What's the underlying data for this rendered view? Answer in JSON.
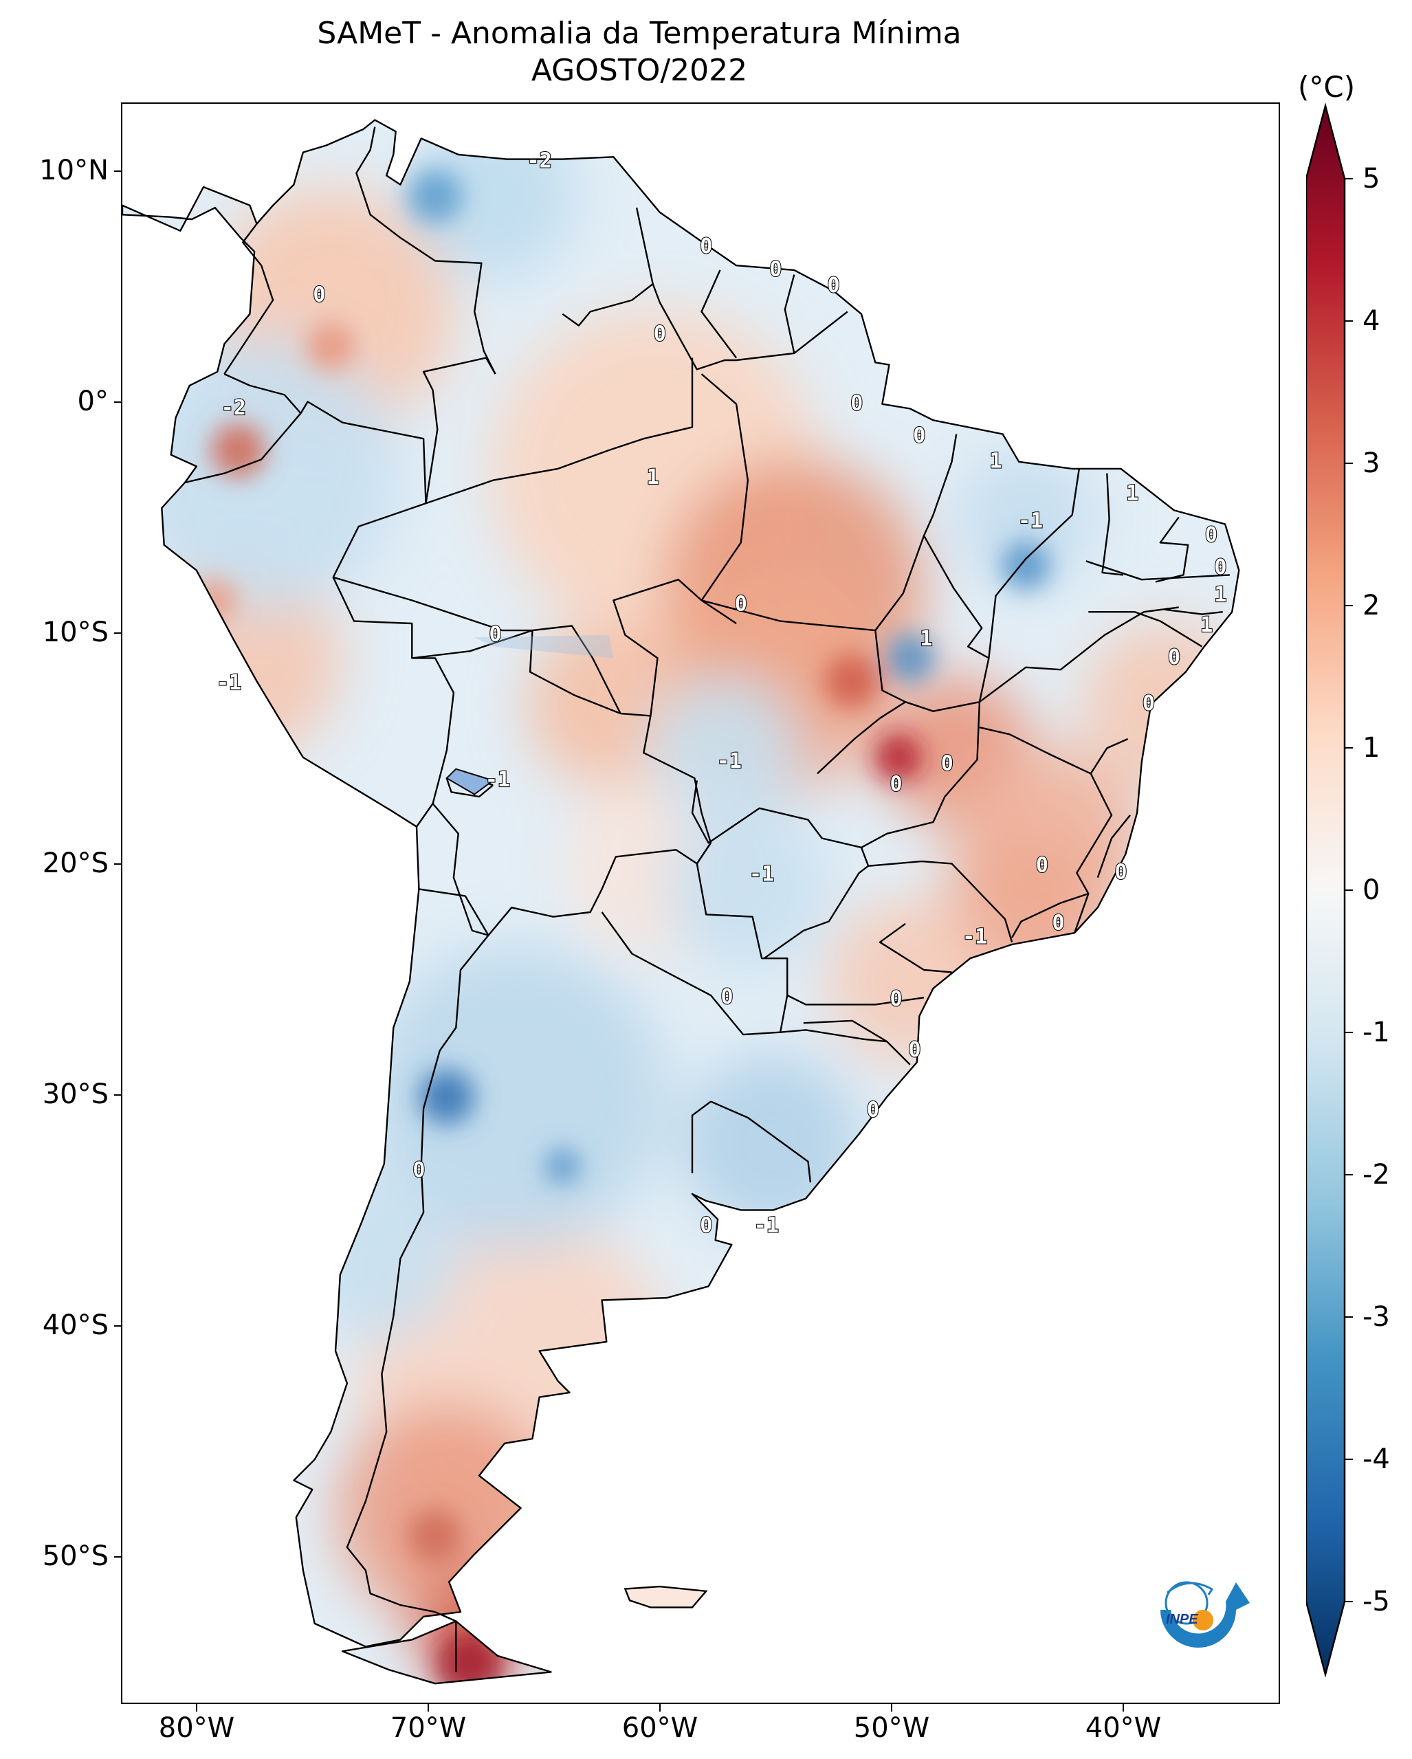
{
  "title": {
    "main": "SAMeT - Anomalia da Temperatura Mínima",
    "sub": "AGOSTO/2022"
  },
  "colorbar": {
    "unit": "(°C)",
    "min": -5,
    "max": 5,
    "ticks": [
      "5",
      "4",
      "3",
      "2",
      "1",
      "0",
      "-1",
      "-2",
      "-3",
      "-4",
      "-5"
    ],
    "colors": [
      "#67001f",
      "#b2182b",
      "#d6604d",
      "#f4a582",
      "#fddbc7",
      "#f7f7f7",
      "#d1e5f0",
      "#92c5de",
      "#4393c3",
      "#2166ac",
      "#053061"
    ]
  },
  "axes": {
    "y_labels": [
      "10°N",
      "0°",
      "10°S",
      "20°S",
      "30°S",
      "40°S",
      "50°S"
    ],
    "x_labels": [
      "80°W",
      "70°W",
      "60°W",
      "50°W",
      "40°W"
    ],
    "lon_range": [
      -83,
      -33
    ],
    "lat_range": [
      -56.5,
      13
    ]
  },
  "contour_labels": [
    {
      "text": "-2",
      "lon": -65.0,
      "lat": 10.5
    },
    {
      "text": "0",
      "lon": -57.8,
      "lat": 6.8
    },
    {
      "text": "0",
      "lon": -54.8,
      "lat": 5.8
    },
    {
      "text": "0",
      "lon": -52.3,
      "lat": 5.1
    },
    {
      "text": "0",
      "lon": -74.5,
      "lat": 4.7
    },
    {
      "text": "0",
      "lon": -59.8,
      "lat": 3.0
    },
    {
      "text": "-2",
      "lon": -78.2,
      "lat": -0.2
    },
    {
      "text": "0",
      "lon": -51.3,
      "lat": 0.0
    },
    {
      "text": "0",
      "lon": -48.6,
      "lat": -1.4
    },
    {
      "text": "1",
      "lon": -60.1,
      "lat": -3.2
    },
    {
      "text": "1",
      "lon": -45.3,
      "lat": -2.5
    },
    {
      "text": "1",
      "lon": -39.4,
      "lat": -3.9
    },
    {
      "text": "-1",
      "lon": -43.8,
      "lat": -5.1
    },
    {
      "text": "0",
      "lon": -36.0,
      "lat": -5.7
    },
    {
      "text": "0",
      "lon": -35.6,
      "lat": -7.1
    },
    {
      "text": "1",
      "lon": -35.6,
      "lat": -8.3
    },
    {
      "text": "0",
      "lon": -56.3,
      "lat": -8.7
    },
    {
      "text": "0",
      "lon": -66.9,
      "lat": -10.0
    },
    {
      "text": "1",
      "lon": -48.3,
      "lat": -10.2
    },
    {
      "text": "1",
      "lon": -36.2,
      "lat": -9.6
    },
    {
      "text": "0",
      "lon": -37.6,
      "lat": -11.0
    },
    {
      "text": "-1",
      "lon": -78.4,
      "lat": -12.1
    },
    {
      "text": "0",
      "lon": -38.7,
      "lat": -13.0
    },
    {
      "text": "-1",
      "lon": -56.8,
      "lat": -15.5
    },
    {
      "text": "0",
      "lon": -47.4,
      "lat": -15.6
    },
    {
      "text": "0",
      "lon": -49.6,
      "lat": -16.5
    },
    {
      "text": "-1",
      "lon": -66.8,
      "lat": -16.3
    },
    {
      "text": "0",
      "lon": -43.3,
      "lat": -20.0
    },
    {
      "text": "0",
      "lon": -39.9,
      "lat": -20.3
    },
    {
      "text": "-1",
      "lon": -55.4,
      "lat": -20.4
    },
    {
      "text": "-1",
      "lon": -46.2,
      "lat": -23.1
    },
    {
      "text": "0",
      "lon": -42.6,
      "lat": -22.5
    },
    {
      "text": "0",
      "lon": -56.9,
      "lat": -25.7
    },
    {
      "text": "0",
      "lon": -49.6,
      "lat": -25.8
    },
    {
      "text": "0",
      "lon": -48.8,
      "lat": -28.0
    },
    {
      "text": "0",
      "lon": -50.6,
      "lat": -30.6
    },
    {
      "text": "0",
      "lon": -70.2,
      "lat": -33.2
    },
    {
      "text": "0",
      "lon": -57.8,
      "lat": -35.6
    },
    {
      "text": "-1",
      "lon": -55.2,
      "lat": -35.6
    }
  ],
  "logo_text": "INPE"
}
